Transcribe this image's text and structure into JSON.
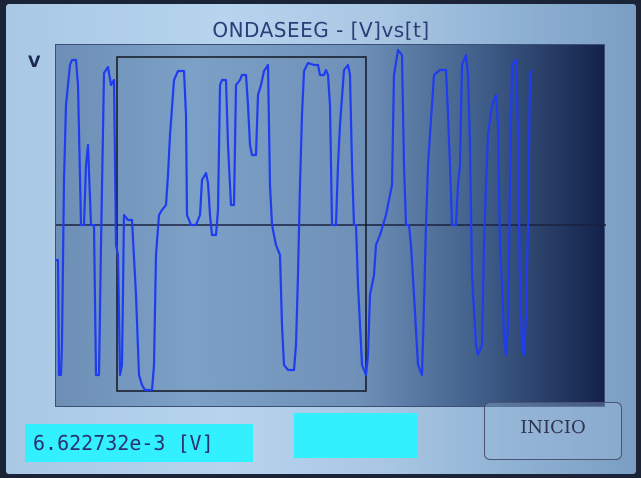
{
  "title": "ONDASEEG - [V]vs[t]",
  "y_axis_label": "V",
  "readout": "6.622732e-3 [V]",
  "button_label": "INICIO",
  "colors": {
    "trace": "#1f3cf0",
    "axis_line": "#1a2140",
    "selection_box": "#111522",
    "readout_bg": "#33f0ff"
  }
}
